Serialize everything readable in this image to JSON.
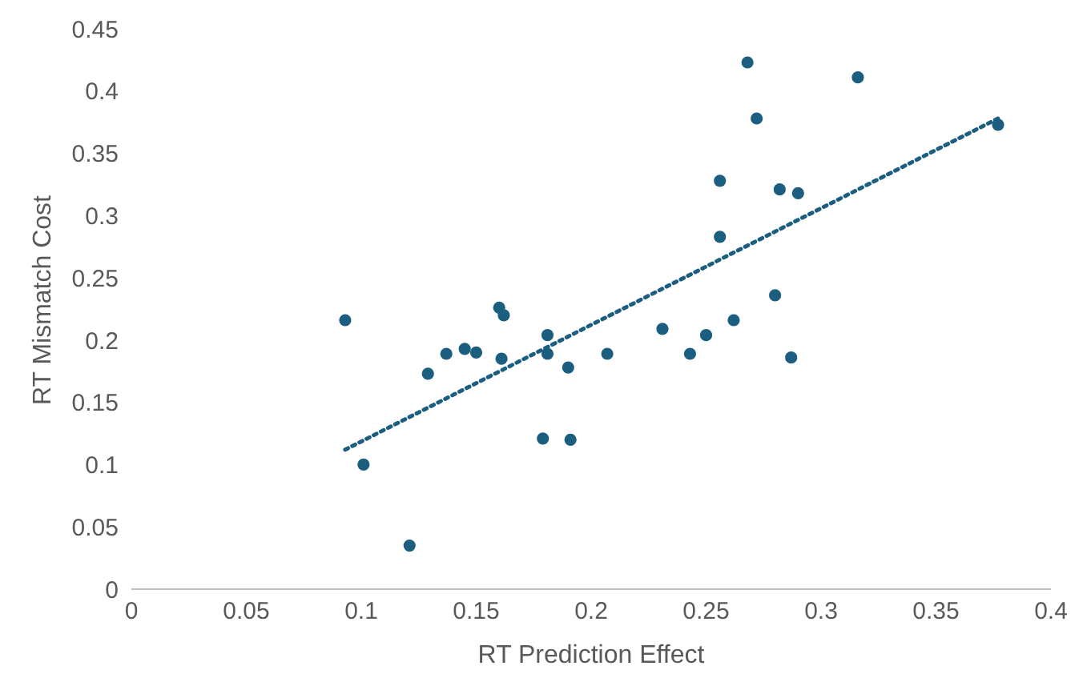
{
  "chart_data": {
    "type": "scatter",
    "xlabel": "RT Prediction Effect",
    "ylabel": "RT Mismatch Cost",
    "xlim": [
      0,
      0.4
    ],
    "ylim": [
      0,
      0.45
    ],
    "xticks": [
      0,
      0.05,
      0.1,
      0.15,
      0.2,
      0.25,
      0.3,
      0.35,
      0.4
    ],
    "yticks": [
      0,
      0.05,
      0.1,
      0.15,
      0.2,
      0.25,
      0.3,
      0.35,
      0.4,
      0.45
    ],
    "grid": false,
    "legend": false,
    "marker": "circle",
    "series": [
      {
        "color": "#1b5e80",
        "x": [
          0.093,
          0.101,
          0.121,
          0.129,
          0.137,
          0.145,
          0.15,
          0.16,
          0.162,
          0.161,
          0.179,
          0.181,
          0.181,
          0.19,
          0.191,
          0.207,
          0.231,
          0.243,
          0.25,
          0.256,
          0.256,
          0.262,
          0.268,
          0.272,
          0.28,
          0.282,
          0.287,
          0.29,
          0.316,
          0.377
        ],
        "values": [
          0.216,
          0.1,
          0.035,
          0.173,
          0.189,
          0.193,
          0.19,
          0.226,
          0.22,
          0.185,
          0.121,
          0.204,
          0.189,
          0.178,
          0.12,
          0.189,
          0.209,
          0.189,
          0.204,
          0.328,
          0.283,
          0.216,
          0.423,
          0.378,
          0.236,
          0.321,
          0.186,
          0.318,
          0.411,
          0.373
        ]
      },
      {
        "type": "line",
        "color": "#1b5e80",
        "marker": "none",
        "line_style": "dotted",
        "x": [
          0.093,
          0.377
        ],
        "values": [
          0.112,
          0.378
        ]
      }
    ]
  }
}
